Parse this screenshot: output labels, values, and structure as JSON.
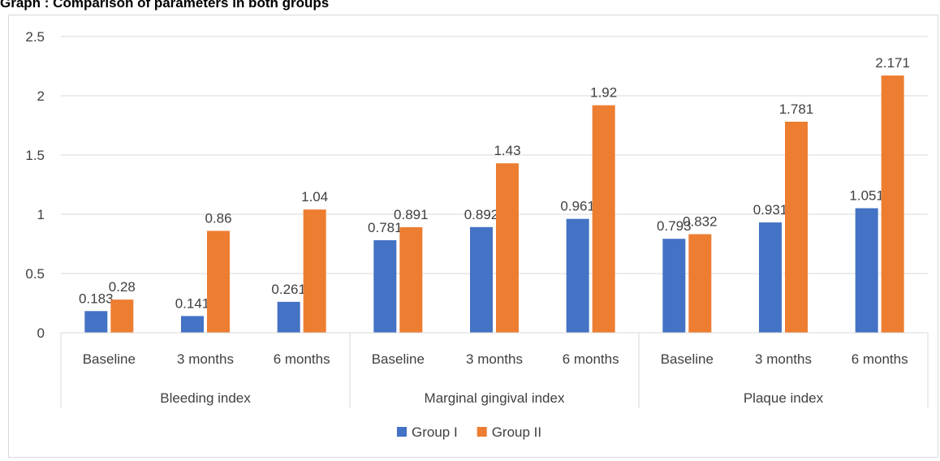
{
  "title": "Graph : Comparison of parameters in both groups",
  "colors": {
    "group1": "#4472C4",
    "group2": "#ED7D31",
    "grid": "#d9d9d9",
    "text": "#404040"
  },
  "chart_data": {
    "type": "bar",
    "title": "Graph : Comparison of parameters in both groups",
    "groups": [
      {
        "label": "Bleeding index",
        "categories": [
          "Baseline",
          "3 months",
          "6 months"
        ]
      },
      {
        "label": "Marginal gingival index",
        "categories": [
          "Baseline",
          "3 months",
          "6 months"
        ]
      },
      {
        "label": "Plaque index",
        "categories": [
          "Baseline",
          "3 months",
          "6 months"
        ]
      }
    ],
    "series": [
      {
        "name": "Group I",
        "color": "#4472C4",
        "values": [
          0.183,
          0.141,
          0.261,
          0.781,
          0.892,
          0.961,
          0.793,
          0.931,
          1.051
        ],
        "labels": [
          "0.183",
          "0.141",
          "0.261",
          "0.781",
          "0.892",
          "0.961",
          "0.793",
          "0.931",
          "1.051"
        ]
      },
      {
        "name": "Group II",
        "color": "#ED7D31",
        "values": [
          0.28,
          0.86,
          1.04,
          0.891,
          1.43,
          1.92,
          0.832,
          1.781,
          2.171
        ],
        "labels": [
          "0.28",
          "0.86",
          "1.04",
          "0.891",
          "1.43",
          "1.92",
          "0.832",
          "1.781",
          "2.171"
        ]
      }
    ],
    "yticks": [
      "0",
      "0.5",
      "1",
      "1.5",
      "2",
      "2.5"
    ],
    "ylim": [
      0,
      2.5
    ],
    "grid": true,
    "legend": "bottom-center"
  }
}
